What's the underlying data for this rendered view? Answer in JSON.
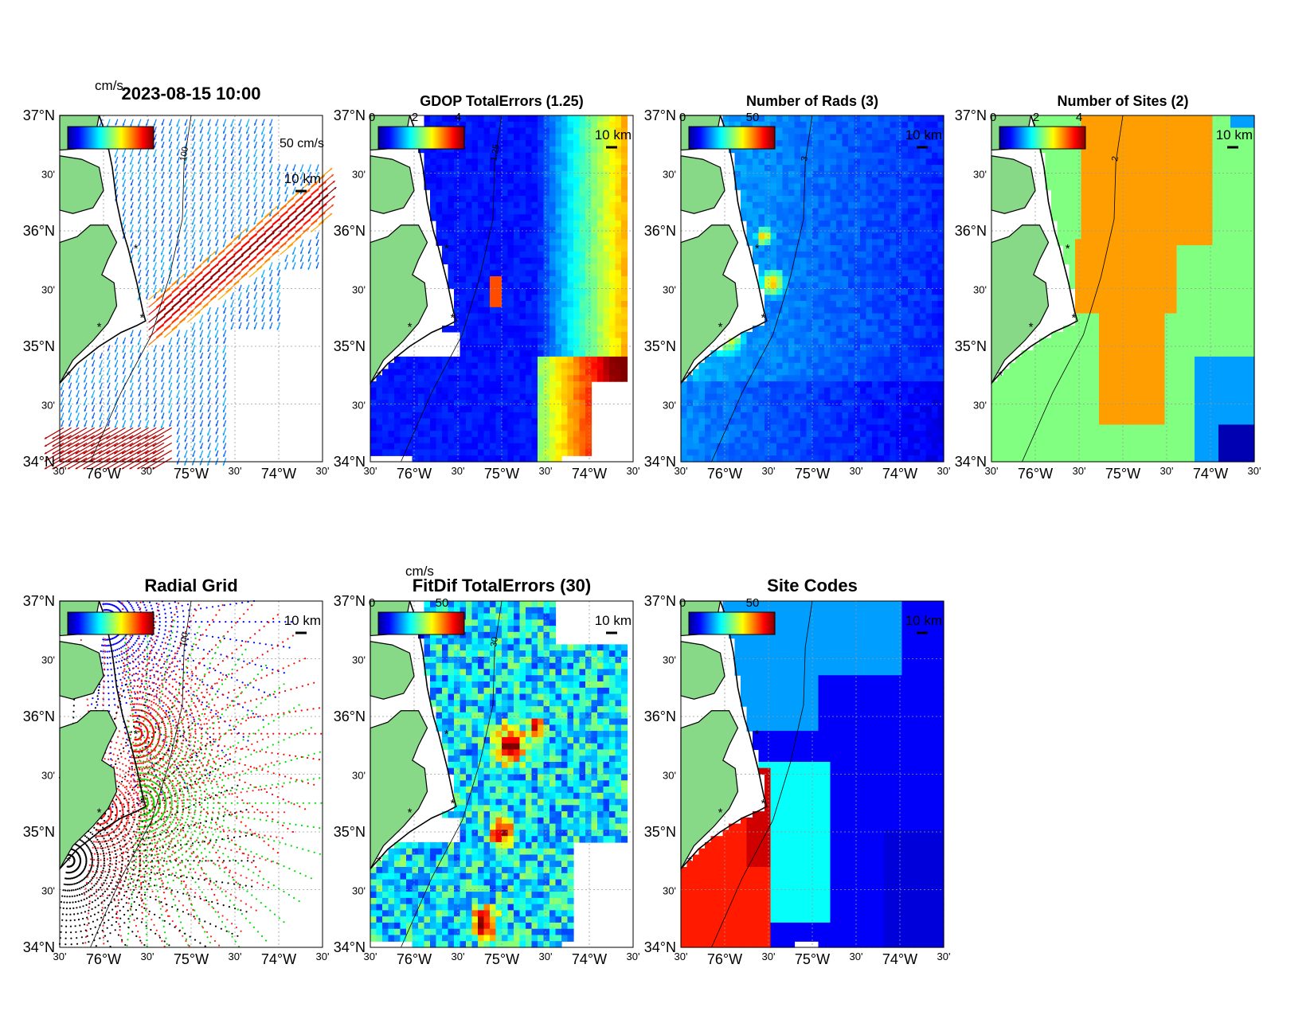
{
  "ticks": {
    "lat": [
      "37°N",
      "30'",
      "36°N",
      "30'",
      "35°N",
      "30'",
      "34°N"
    ],
    "lon": [
      "30'",
      "76°W",
      "30'",
      "75°W",
      "30'",
      "74°W",
      "30'"
    ]
  },
  "panels": [
    {
      "id": "total-currents",
      "title": "2023-08-15 10:00",
      "kind": "vectors",
      "units": "cm/s",
      "cbar_ticks": [],
      "scale_label": "10 km",
      "vector_scale_label": "50 cm/s",
      "contour_label": "100"
    },
    {
      "id": "gdop-total-errors",
      "title": "GDOP TotalErrors (1.25)",
      "kind": "gdop",
      "units": "",
      "cbar_ticks": [
        "0",
        "2",
        "4"
      ],
      "scale_label": "10 km",
      "contour_label": "1.25"
    },
    {
      "id": "number-of-rads",
      "title": "Number of Rads (3)",
      "kind": "rads",
      "units": "",
      "cbar_ticks": [
        "0",
        "50"
      ],
      "scale_label": "10 km",
      "contour_label": "3"
    },
    {
      "id": "number-of-sites",
      "title": "Number of Sites (2)",
      "kind": "sites",
      "units": "",
      "cbar_ticks": [
        "0",
        "2",
        "4"
      ],
      "scale_label": "10 km",
      "contour_label": "2"
    },
    {
      "id": "radial-grid",
      "title": "Radial Grid",
      "kind": "radial",
      "units": "",
      "cbar_ticks": [],
      "scale_label": "10 km",
      "contour_label": "100"
    },
    {
      "id": "fitdif-total-errors",
      "title": "FitDif TotalErrors (30)",
      "kind": "fitdif",
      "units": "cm/s",
      "cbar_ticks": [
        "0",
        "50"
      ],
      "scale_label": "10 km",
      "contour_label": "30"
    },
    {
      "id": "site-codes",
      "title": "Site Codes",
      "kind": "codes",
      "units": "",
      "cbar_ticks": [
        "0",
        "50"
      ],
      "scale_label": "10 km",
      "contour_label": ""
    }
  ],
  "colors": {
    "land": "#87d987",
    "coast": "#000000",
    "site_marker": "#ff0000",
    "radial_sites": [
      "#0000ff",
      "#ff0000",
      "#00dd00",
      "#ff2222",
      "#000000"
    ]
  }
}
